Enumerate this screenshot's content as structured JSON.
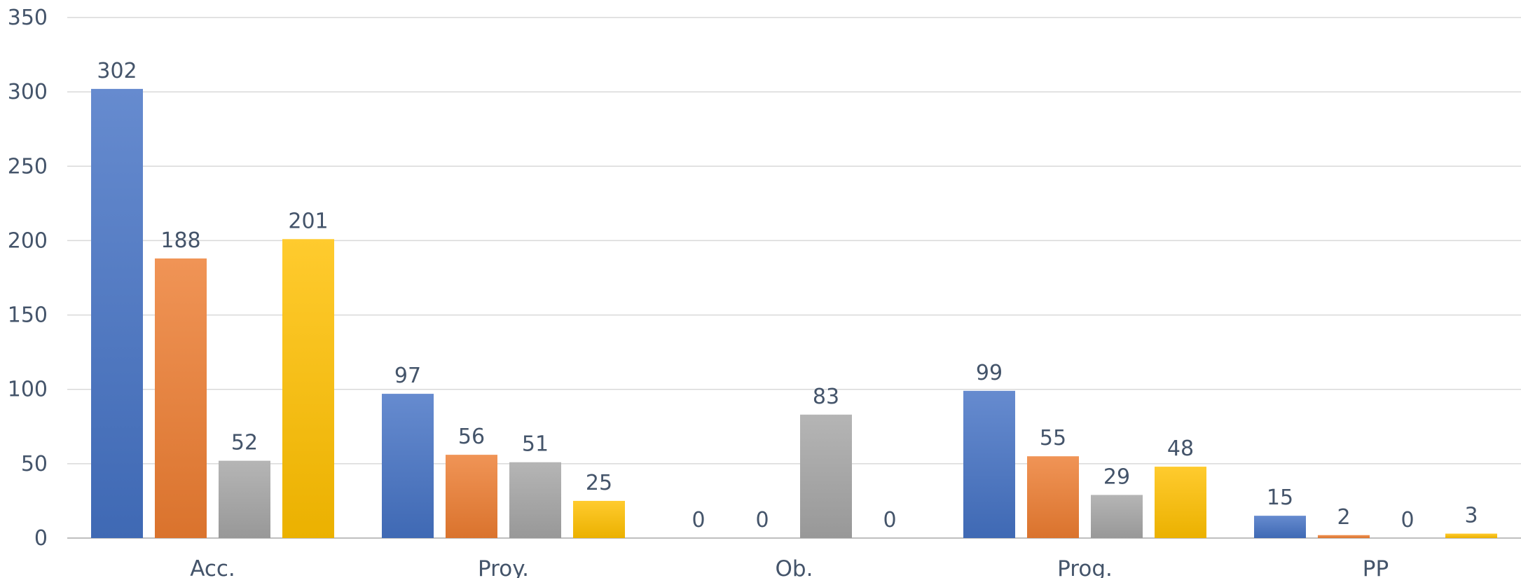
{
  "chart_data": {
    "type": "bar",
    "categories": [
      "Acc.",
      "Proy.",
      "Ob.",
      "Prog.",
      "PP"
    ],
    "series": [
      {
        "values": [
          302,
          97,
          0,
          99,
          15
        ],
        "color": "#4472c4"
      },
      {
        "values": [
          188,
          56,
          0,
          55,
          2
        ],
        "color": "#ed7d31"
      },
      {
        "values": [
          52,
          51,
          83,
          29,
          0
        ],
        "color": "#a5a5a5"
      },
      {
        "values": [
          201,
          25,
          0,
          48,
          3
        ],
        "color": "#ffc000"
      }
    ],
    "ylim": [
      0,
      350
    ],
    "yticks": [
      0,
      50,
      100,
      150,
      200,
      250,
      300,
      350
    ],
    "grid": true,
    "data_labels": true,
    "legend": "none"
  }
}
